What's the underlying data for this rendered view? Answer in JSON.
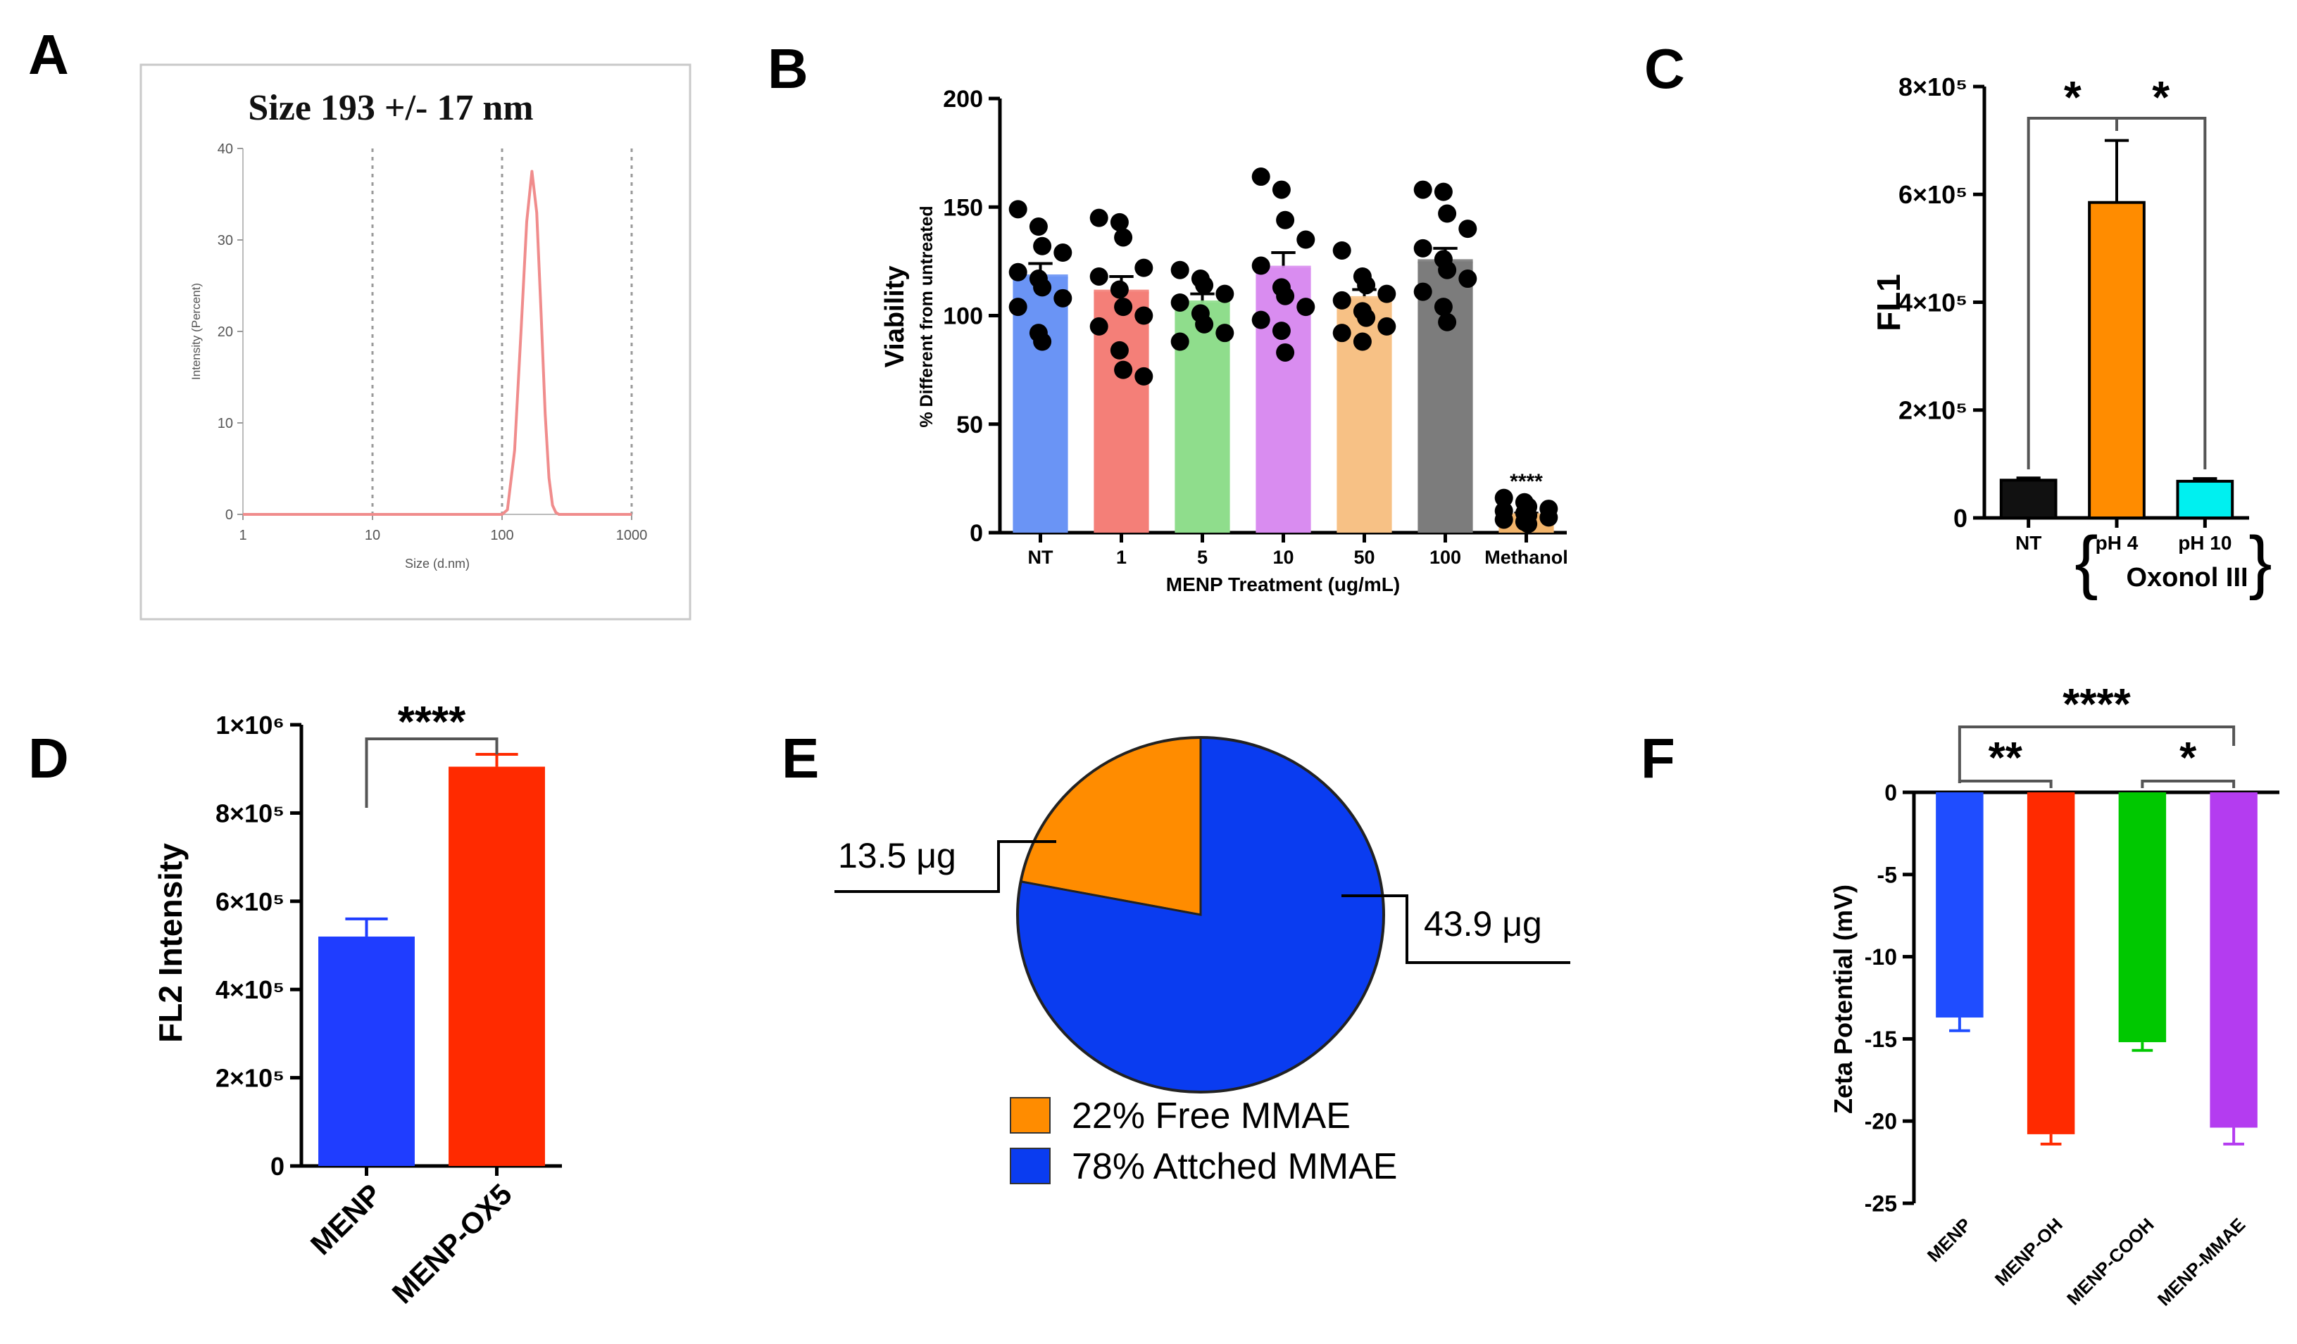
{
  "panels": {
    "A": {
      "letter": "A"
    },
    "B": {
      "letter": "B"
    },
    "C": {
      "letter": "C"
    },
    "D": {
      "letter": "D"
    },
    "E": {
      "letter": "E"
    },
    "F": {
      "letter": "F"
    }
  },
  "chart_data": [
    {
      "panel": "A",
      "type": "line",
      "title": "Size 193 +/- 17 nm",
      "xlabel": "Size (d.nm)",
      "ylabel": "Intensity (Percent)",
      "xscale": "log",
      "xlim": [
        1,
        1000
      ],
      "ylim": [
        0,
        40
      ],
      "xticks": [
        1,
        10,
        100,
        1000
      ],
      "yticks": [
        0,
        10,
        20,
        30,
        40
      ],
      "xtick_labels": [
        "1",
        "10",
        "100",
        "1000"
      ],
      "ytick_labels": [
        "0",
        "10",
        "20",
        "30",
        "40"
      ],
      "series": [
        {
          "name": "Intensity",
          "color": "#f08c8c",
          "x": [
            1,
            100,
            110,
            125,
            140,
            155,
            170,
            185,
            200,
            215,
            230,
            245,
            260,
            275,
            1000
          ],
          "y": [
            0,
            0,
            0.5,
            7,
            20,
            32,
            37.5,
            33,
            22,
            11,
            4,
            1,
            0.2,
            0,
            0
          ]
        }
      ],
      "grid": "vertical dotted at 10, 100, 1000"
    },
    {
      "panel": "B",
      "type": "bar",
      "title": "",
      "ylabel": "Viability",
      "ylabel2": "% Different from untreated",
      "xlabel": "MENP Treatment (ug/mL)",
      "ylim": [
        0,
        200
      ],
      "yticks": [
        0,
        50,
        100,
        150,
        200
      ],
      "ytick_labels": [
        "0",
        "50",
        "100",
        "150",
        "200"
      ],
      "categories": [
        "NT",
        "1",
        "5",
        "10",
        "50",
        "100",
        "Methanol"
      ],
      "values": [
        118,
        111,
        106,
        122,
        108,
        125,
        8
      ],
      "errors": [
        6,
        7,
        4,
        7,
        4,
        6,
        1
      ],
      "colors": [
        "#6a94f5",
        "#f47f78",
        "#8fdd8c",
        "#d98cf0",
        "#f7c185",
        "#7c7c7c",
        "#f2b46b"
      ],
      "points": [
        [
          149,
          141,
          132,
          129,
          120,
          117,
          113,
          108,
          104,
          92,
          88
        ],
        [
          145,
          143,
          136,
          122,
          118,
          112,
          104,
          100,
          95,
          84,
          75,
          72
        ],
        [
          121,
          117,
          114,
          110,
          106,
          101,
          96,
          92,
          88
        ],
        [
          164,
          158,
          144,
          135,
          123,
          113,
          109,
          104,
          98,
          93,
          83
        ],
        [
          130,
          118,
          114,
          110,
          107,
          102,
          99,
          95,
          92,
          88
        ],
        [
          158,
          157,
          147,
          140,
          131,
          126,
          121,
          117,
          111,
          104,
          97
        ],
        [
          16,
          14,
          12,
          11,
          10,
          9,
          8,
          7,
          6,
          5,
          4
        ]
      ],
      "annotations": [
        "****"
      ]
    },
    {
      "panel": "C",
      "type": "bar",
      "title": "",
      "ylabel": "FL1",
      "ylim": [
        0,
        800000
      ],
      "yticks": [
        0,
        200000,
        400000,
        600000,
        800000
      ],
      "ytick_labels": [
        "0",
        "2×10⁵",
        "4×10⁵",
        "6×10⁵",
        "8×10⁵"
      ],
      "categories": [
        "NT",
        "pH 4",
        "pH 10"
      ],
      "values": [
        70000,
        585000,
        68000
      ],
      "errors": [
        4000,
        115000,
        5000
      ],
      "colors": [
        "#111111",
        "#ff8c00",
        "#00f0f0"
      ],
      "group_label": "Oxonol III",
      "brackets_left": "{",
      "brackets_right": "}",
      "annotations": [
        "*",
        "*"
      ]
    },
    {
      "panel": "D",
      "type": "bar",
      "title": "",
      "ylabel": "FL2 Intensity",
      "ylim": [
        0,
        1000000
      ],
      "yticks": [
        0,
        200000,
        400000,
        600000,
        800000,
        1000000
      ],
      "ytick_labels": [
        "0",
        "2×10⁵",
        "4×10⁵",
        "6×10⁵",
        "8×10⁵",
        "1×10⁶"
      ],
      "categories": [
        "MENP",
        "MENP-OX5"
      ],
      "values": [
        520000,
        905000
      ],
      "errors": [
        40000,
        28000
      ],
      "colors": [
        "#1f3dff",
        "#ff2a00"
      ],
      "annotations": [
        "****"
      ]
    },
    {
      "panel": "E",
      "type": "pie",
      "title": "",
      "labels": [
        "22% Free MMAE",
        "78% Attched MMAE"
      ],
      "values": [
        22,
        78
      ],
      "colors": [
        "#ff8c00",
        "#0a3cf0"
      ],
      "callouts": [
        "13.5 μg",
        "43.9 μg"
      ]
    },
    {
      "panel": "F",
      "type": "bar",
      "title": "",
      "ylabel": "Zeta Potential  (mV)",
      "ylim": [
        -25,
        0
      ],
      "yticks": [
        0,
        -5,
        -10,
        -15,
        -20,
        -25
      ],
      "ytick_labels": [
        "0",
        "-5",
        "-10",
        "-15",
        "-20",
        "-25"
      ],
      "categories": [
        "MENP",
        "MENP-OH",
        "MENP-COOH",
        "MENP-MMAE"
      ],
      "values": [
        -13.7,
        -20.8,
        -15.2,
        -20.4
      ],
      "errors": [
        0.8,
        0.6,
        0.5,
        1.0
      ],
      "colors": [
        "#1f4dff",
        "#ff2a00",
        "#00c800",
        "#b43cf0"
      ],
      "annotations": [
        "****",
        "**",
        "*"
      ]
    }
  ]
}
